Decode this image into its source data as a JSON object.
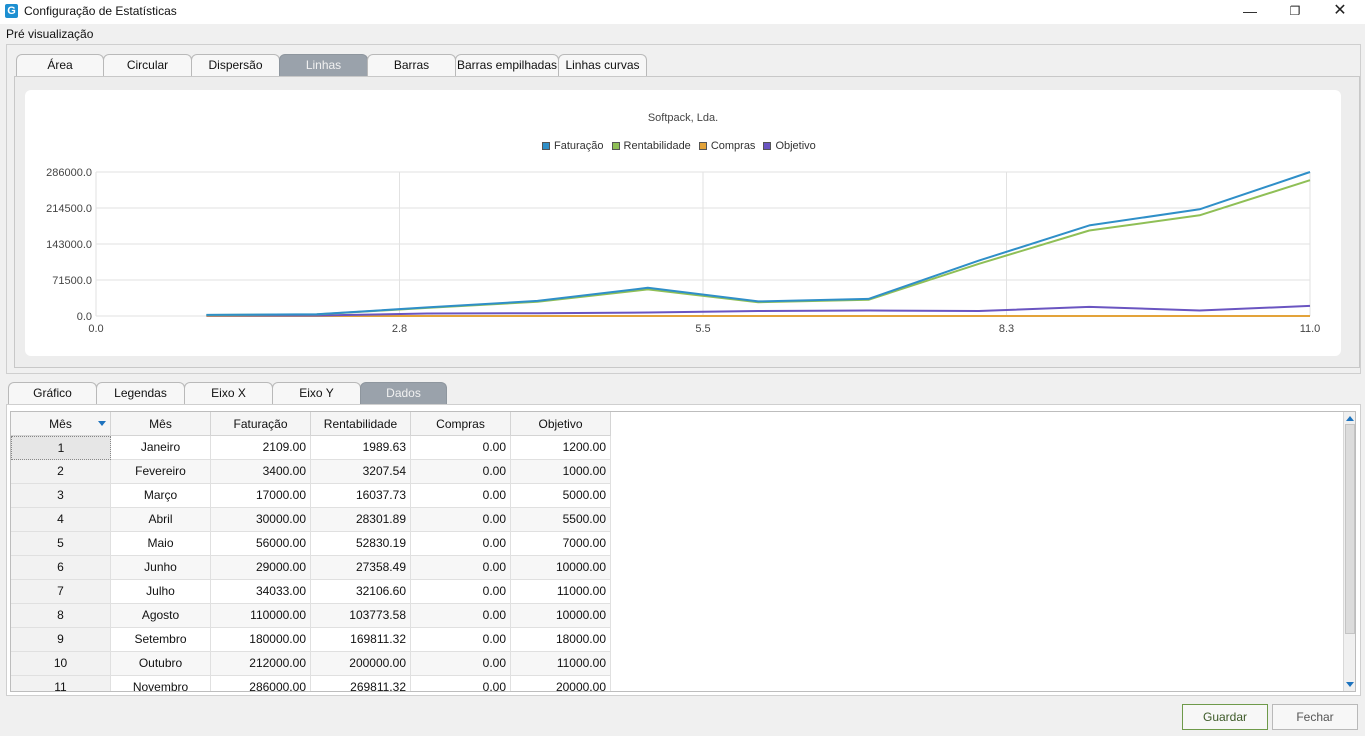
{
  "window": {
    "title": "Configuração de Estatísticas",
    "icon_letter": "G",
    "minimize_glyph": "—",
    "maximize_glyph": "❐",
    "close_glyph": "✕"
  },
  "preview": {
    "label": "Pré visualização",
    "tabs": [
      "Área",
      "Circular",
      "Dispersão",
      "Linhas",
      "Barras",
      "Barras empilhadas",
      "Linhas curvas"
    ],
    "active_tab": "Linhas"
  },
  "chart_data": {
    "type": "line",
    "title": "Softpack, Lda.",
    "xlabel": "",
    "ylabel": "",
    "xlim": [
      0,
      11
    ],
    "ylim": [
      0,
      286000
    ],
    "x_ticks": [
      "0.0",
      "2.8",
      "5.5",
      "8.3",
      "11.0"
    ],
    "y_ticks": [
      "0.0",
      "71500.0",
      "143000.0",
      "214500.0",
      "286000.0"
    ],
    "grid": true,
    "legend_position": "top-center",
    "x": [
      1,
      2,
      3,
      4,
      5,
      6,
      7,
      8,
      9,
      10,
      11
    ],
    "series": [
      {
        "name": "Faturação",
        "color": "#2f8fc8",
        "values": [
          2109,
          3400,
          17000,
          30000,
          56000,
          29000,
          34033,
          110000,
          180000,
          212000,
          286000
        ]
      },
      {
        "name": "Rentabilidade",
        "color": "#8fbf56",
        "values": [
          1989.63,
          3207.54,
          16037.73,
          28301.89,
          52830.19,
          27358.49,
          32106.6,
          103773.58,
          169811.32,
          200000,
          269811.32
        ]
      },
      {
        "name": "Compras",
        "color": "#e3a33a",
        "values": [
          0,
          0,
          0,
          0,
          0,
          0,
          0,
          0,
          0,
          0,
          0
        ]
      },
      {
        "name": "Objetivo",
        "color": "#6a55c1",
        "values": [
          1200,
          1000,
          5000,
          5500,
          7000,
          10000,
          11000,
          10000,
          18000,
          11000,
          20000
        ]
      }
    ]
  },
  "data_section": {
    "tabs": [
      "Gráfico",
      "Legendas",
      "Eixo X",
      "Eixo Y",
      "Dados"
    ],
    "active_tab": "Dados",
    "headers": [
      "Mês",
      "Mês",
      "Faturação",
      "Rentabilidade",
      "Compras",
      "Objetivo"
    ],
    "rows": [
      [
        "1",
        "Janeiro",
        "2109.00",
        "1989.63",
        "0.00",
        "1200.00"
      ],
      [
        "2",
        "Fevereiro",
        "3400.00",
        "3207.54",
        "0.00",
        "1000.00"
      ],
      [
        "3",
        "Março",
        "17000.00",
        "16037.73",
        "0.00",
        "5000.00"
      ],
      [
        "4",
        "Abril",
        "30000.00",
        "28301.89",
        "0.00",
        "5500.00"
      ],
      [
        "5",
        "Maio",
        "56000.00",
        "52830.19",
        "0.00",
        "7000.00"
      ],
      [
        "6",
        "Junho",
        "29000.00",
        "27358.49",
        "0.00",
        "10000.00"
      ],
      [
        "7",
        "Julho",
        "34033.00",
        "32106.60",
        "0.00",
        "11000.00"
      ],
      [
        "8",
        "Agosto",
        "110000.00",
        "103773.58",
        "0.00",
        "10000.00"
      ],
      [
        "9",
        "Setembro",
        "180000.00",
        "169811.32",
        "0.00",
        "18000.00"
      ],
      [
        "10",
        "Outubro",
        "212000.00",
        "200000.00",
        "0.00",
        "11000.00"
      ],
      [
        "11",
        "Novembro",
        "286000.00",
        "269811.32",
        "0.00",
        "20000.00"
      ]
    ]
  },
  "footer": {
    "save_label": "Guardar",
    "close_label": "Fechar"
  }
}
